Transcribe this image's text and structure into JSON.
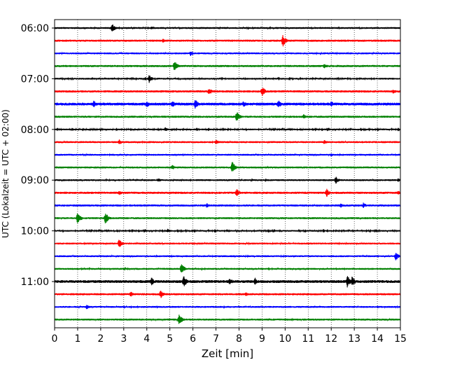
{
  "chart_data": {
    "type": "line",
    "title": "",
    "xlabel": "Zeit  [min]",
    "ylabel": "UTC (Lokalzeit = UTC + 02:00)",
    "xlim": [
      0,
      15
    ],
    "x_ticks": [
      0,
      1,
      2,
      3,
      4,
      5,
      6,
      7,
      8,
      9,
      10,
      11,
      12,
      13,
      14,
      15
    ],
    "x_tick_labels": [
      "0",
      "1",
      "2",
      "3",
      "4",
      "5",
      "6",
      "7",
      "8",
      "9",
      "10",
      "11",
      "12",
      "13",
      "14",
      "15"
    ],
    "y_tick_labels": [
      "06:00",
      "07:00",
      "08:00",
      "09:00",
      "10:00",
      "11:00"
    ],
    "y_tick_rows": [
      0,
      4,
      8,
      12,
      16,
      20
    ],
    "grid": "vertical dotted at each minute",
    "color_cycle": [
      "#000000",
      "#ff0000",
      "#0000ff",
      "#008000"
    ],
    "traces": [
      {
        "start": "06:00",
        "color": "#000000",
        "noise": 0.14,
        "events": [
          {
            "t": 2.5,
            "amp": 0.7
          },
          {
            "t": 4.2,
            "amp": 0.3
          }
        ]
      },
      {
        "start": "06:15",
        "color": "#ff0000",
        "noise": 0.16,
        "events": [
          {
            "t": 4.7,
            "amp": 0.35
          },
          {
            "t": 9.9,
            "amp": 1.0
          }
        ]
      },
      {
        "start": "06:30",
        "color": "#0000ff",
        "noise": 0.14,
        "events": [
          {
            "t": 5.9,
            "amp": 0.45
          }
        ]
      },
      {
        "start": "06:45",
        "color": "#008000",
        "noise": 0.16,
        "events": [
          {
            "t": 5.2,
            "amp": 0.9
          },
          {
            "t": 11.7,
            "amp": 0.5
          }
        ]
      },
      {
        "start": "07:00",
        "color": "#000000",
        "noise": 0.13,
        "events": [
          {
            "t": 4.1,
            "amp": 0.7
          }
        ]
      },
      {
        "start": "07:15",
        "color": "#ff0000",
        "noise": 0.17,
        "events": [
          {
            "t": 6.7,
            "amp": 0.6
          },
          {
            "t": 9.0,
            "amp": 0.9
          },
          {
            "t": 14.7,
            "amp": 0.4
          }
        ]
      },
      {
        "start": "07:30",
        "color": "#0000ff",
        "noise": 0.22,
        "events": [
          {
            "t": 1.7,
            "amp": 0.6
          },
          {
            "t": 4.0,
            "amp": 0.6
          },
          {
            "t": 5.1,
            "amp": 0.6
          },
          {
            "t": 6.1,
            "amp": 0.8
          },
          {
            "t": 8.2,
            "amp": 0.6
          },
          {
            "t": 9.7,
            "amp": 0.7
          },
          {
            "t": 12.0,
            "amp": 0.5
          }
        ]
      },
      {
        "start": "07:45",
        "color": "#008000",
        "noise": 0.16,
        "events": [
          {
            "t": 7.9,
            "amp": 0.9
          },
          {
            "t": 10.8,
            "amp": 0.4
          }
        ]
      },
      {
        "start": "08:00",
        "color": "#000000",
        "noise": 0.12,
        "events": [
          {
            "t": 4.8,
            "amp": 0.4
          }
        ]
      },
      {
        "start": "08:15",
        "color": "#ff0000",
        "noise": 0.15,
        "events": [
          {
            "t": 2.8,
            "amp": 0.45
          },
          {
            "t": 7.0,
            "amp": 0.45
          },
          {
            "t": 11.7,
            "amp": 0.35
          }
        ]
      },
      {
        "start": "08:30",
        "color": "#0000ff",
        "noise": 0.14,
        "events": [
          {
            "t": 12.0,
            "amp": 0.3
          }
        ]
      },
      {
        "start": "08:45",
        "color": "#008000",
        "noise": 0.15,
        "events": [
          {
            "t": 5.1,
            "amp": 0.45
          },
          {
            "t": 7.7,
            "amp": 1.0
          }
        ]
      },
      {
        "start": "09:00",
        "color": "#000000",
        "noise": 0.14,
        "events": [
          {
            "t": 4.5,
            "amp": 0.35
          },
          {
            "t": 12.2,
            "amp": 0.6
          },
          {
            "t": 14.9,
            "amp": 0.3
          }
        ]
      },
      {
        "start": "09:15",
        "color": "#ff0000",
        "noise": 0.17,
        "events": [
          {
            "t": 2.8,
            "amp": 0.4
          },
          {
            "t": 7.9,
            "amp": 0.7
          },
          {
            "t": 11.8,
            "amp": 0.7
          },
          {
            "t": 14.9,
            "amp": 0.4
          }
        ]
      },
      {
        "start": "09:30",
        "color": "#0000ff",
        "noise": 0.16,
        "events": [
          {
            "t": 6.6,
            "amp": 0.4
          },
          {
            "t": 12.4,
            "amp": 0.4
          },
          {
            "t": 13.4,
            "amp": 0.5
          }
        ]
      },
      {
        "start": "09:45",
        "color": "#008000",
        "noise": 0.15,
        "events": [
          {
            "t": 1.0,
            "amp": 1.0
          },
          {
            "t": 2.2,
            "amp": 1.0
          }
        ]
      },
      {
        "start": "10:00",
        "color": "#000000",
        "noise": 0.12,
        "events": [
          {
            "t": 4.9,
            "amp": 0.35
          }
        ]
      },
      {
        "start": "10:15",
        "color": "#ff0000",
        "noise": 0.14,
        "events": [
          {
            "t": 2.8,
            "amp": 0.75
          }
        ]
      },
      {
        "start": "10:30",
        "color": "#0000ff",
        "noise": 0.14,
        "events": [
          {
            "t": 14.8,
            "amp": 0.7
          }
        ]
      },
      {
        "start": "10:45",
        "color": "#008000",
        "noise": 0.14,
        "events": [
          {
            "t": 5.5,
            "amp": 0.9
          }
        ]
      },
      {
        "start": "11:00",
        "color": "#000000",
        "noise": 0.22,
        "events": [
          {
            "t": 4.2,
            "amp": 0.7
          },
          {
            "t": 5.6,
            "amp": 1.0
          },
          {
            "t": 7.6,
            "amp": 0.6
          },
          {
            "t": 8.7,
            "amp": 0.6
          },
          {
            "t": 12.7,
            "amp": 1.0
          },
          {
            "t": 12.9,
            "amp": 0.9
          }
        ]
      },
      {
        "start": "11:15",
        "color": "#ff0000",
        "noise": 0.16,
        "events": [
          {
            "t": 3.3,
            "amp": 0.5
          },
          {
            "t": 4.6,
            "amp": 0.7
          },
          {
            "t": 8.3,
            "amp": 0.35
          }
        ]
      },
      {
        "start": "11:30",
        "color": "#0000ff",
        "noise": 0.14,
        "events": [
          {
            "t": 1.4,
            "amp": 0.45
          }
        ]
      },
      {
        "start": "11:45",
        "color": "#008000",
        "noise": 0.15,
        "events": [
          {
            "t": 5.4,
            "amp": 0.95
          }
        ]
      }
    ]
  }
}
